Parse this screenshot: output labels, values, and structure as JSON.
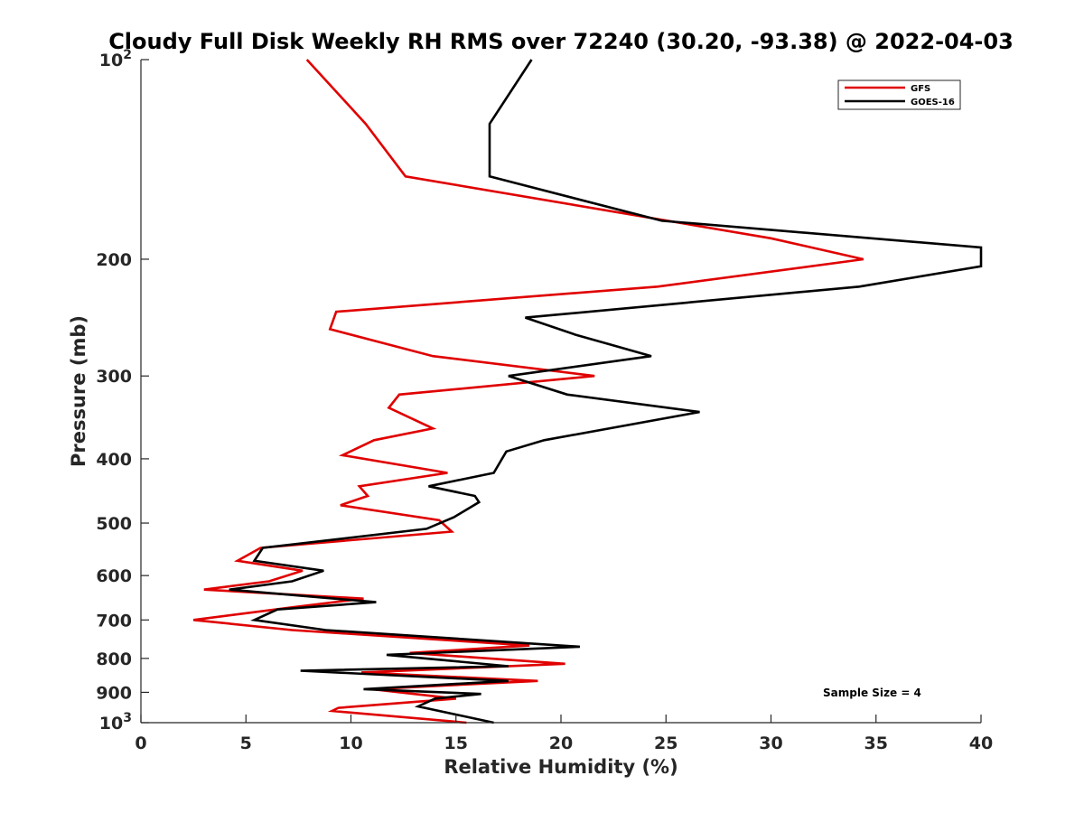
{
  "chart_data": {
    "type": "line",
    "title": "Cloudy Full Disk Weekly RH RMS over 72240 (30.20, -93.38) @ 2022-04-03",
    "xlabel": "Relative Humidity (%)",
    "ylabel": "Pressure (mb)",
    "xlim": [
      0,
      40
    ],
    "ylim": [
      100,
      1000
    ],
    "yscale": "log",
    "y_reversed": true,
    "grid": false,
    "x_ticks": [
      {
        "value": 0,
        "label": "0"
      },
      {
        "value": 5,
        "label": "5"
      },
      {
        "value": 10,
        "label": "10"
      },
      {
        "value": 15,
        "label": "15"
      },
      {
        "value": 20,
        "label": "20"
      },
      {
        "value": 25,
        "label": "25"
      },
      {
        "value": 30,
        "label": "30"
      },
      {
        "value": 35,
        "label": "35"
      },
      {
        "value": 40,
        "label": "40"
      }
    ],
    "y_ticks": [
      {
        "value": 100,
        "base": "10",
        "exp": "2"
      },
      {
        "value": 200,
        "label": "200"
      },
      {
        "value": 300,
        "label": "300"
      },
      {
        "value": 400,
        "label": "400"
      },
      {
        "value": 500,
        "label": "500"
      },
      {
        "value": 600,
        "label": "600"
      },
      {
        "value": 700,
        "label": "700"
      },
      {
        "value": 800,
        "label": "800"
      },
      {
        "value": 900,
        "label": "900"
      },
      {
        "value": 1000,
        "base": "10",
        "exp": "3"
      }
    ],
    "legend_position": "top-right",
    "annotation": "Sample Size = 4",
    "series": [
      {
        "name": "GFS",
        "color": "#e00000",
        "points": [
          [
            7.9,
            100
          ],
          [
            10.7,
            125
          ],
          [
            12.6,
            150
          ],
          [
            30.0,
            186
          ],
          [
            34.4,
            200
          ],
          [
            24.6,
            220
          ],
          [
            9.3,
            240
          ],
          [
            9.0,
            255
          ],
          [
            13.9,
            280
          ],
          [
            21.6,
            300
          ],
          [
            12.3,
            320
          ],
          [
            11.8,
            335
          ],
          [
            13.9,
            360
          ],
          [
            11.1,
            375
          ],
          [
            9.6,
            395
          ],
          [
            14.6,
            420
          ],
          [
            10.4,
            440
          ],
          [
            10.8,
            455
          ],
          [
            9.5,
            470
          ],
          [
            14.2,
            495
          ],
          [
            14.8,
            515
          ],
          [
            5.7,
            545
          ],
          [
            4.6,
            570
          ],
          [
            7.7,
            590
          ],
          [
            6.1,
            612
          ],
          [
            3.0,
            630
          ],
          [
            10.6,
            650
          ],
          [
            7.2,
            670
          ],
          [
            2.5,
            700
          ],
          [
            7.2,
            725
          ],
          [
            18.5,
            765
          ],
          [
            12.8,
            785
          ],
          [
            20.2,
            815
          ],
          [
            10.5,
            840
          ],
          [
            18.9,
            865
          ],
          [
            11.0,
            890
          ],
          [
            15.0,
            920
          ],
          [
            9.4,
            950
          ],
          [
            9.1,
            960
          ],
          [
            15.5,
            1000
          ]
        ]
      },
      {
        "name": "GOES-16",
        "color": "#000000",
        "points": [
          [
            18.6,
            100
          ],
          [
            16.6,
            125
          ],
          [
            16.6,
            150
          ],
          [
            24.8,
            175
          ],
          [
            40.0,
            192
          ],
          [
            40.0,
            205
          ],
          [
            34.2,
            220
          ],
          [
            18.3,
            245
          ],
          [
            20.7,
            260
          ],
          [
            24.3,
            280
          ],
          [
            17.5,
            300
          ],
          [
            20.3,
            320
          ],
          [
            26.6,
            340
          ],
          [
            19.2,
            375
          ],
          [
            17.4,
            390
          ],
          [
            16.8,
            420
          ],
          [
            13.7,
            440
          ],
          [
            15.9,
            455
          ],
          [
            16.1,
            465
          ],
          [
            14.9,
            490
          ],
          [
            13.6,
            510
          ],
          [
            5.8,
            545
          ],
          [
            5.4,
            570
          ],
          [
            8.7,
            590
          ],
          [
            7.2,
            612
          ],
          [
            4.2,
            630
          ],
          [
            11.2,
            658
          ],
          [
            6.5,
            675
          ],
          [
            5.4,
            700
          ],
          [
            8.8,
            725
          ],
          [
            20.9,
            768
          ],
          [
            11.7,
            790
          ],
          [
            17.5,
            822
          ],
          [
            7.6,
            835
          ],
          [
            17.5,
            865
          ],
          [
            10.6,
            890
          ],
          [
            16.2,
            905
          ],
          [
            14.0,
            920
          ],
          [
            13.2,
            945
          ],
          [
            16.8,
            1000
          ]
        ]
      }
    ]
  }
}
